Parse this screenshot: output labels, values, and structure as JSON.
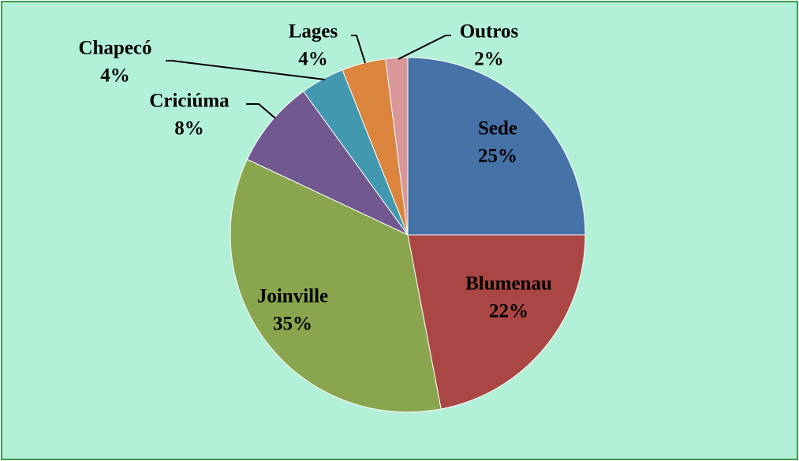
{
  "chart_data": {
    "type": "pie",
    "categories": [
      "Sede",
      "Blumenau",
      "Joinville",
      "Criciúma",
      "Chapecó",
      "Lages",
      "Outros"
    ],
    "values": [
      25,
      22,
      35,
      8,
      4,
      4,
      2
    ],
    "value_labels": [
      "25%",
      "22%",
      "35%",
      "8%",
      "4%",
      "4%",
      "2%"
    ],
    "colors": [
      "#4572a7",
      "#aa4643",
      "#89a54e",
      "#71588f",
      "#4198af",
      "#db843d",
      "#d9979a"
    ]
  }
}
